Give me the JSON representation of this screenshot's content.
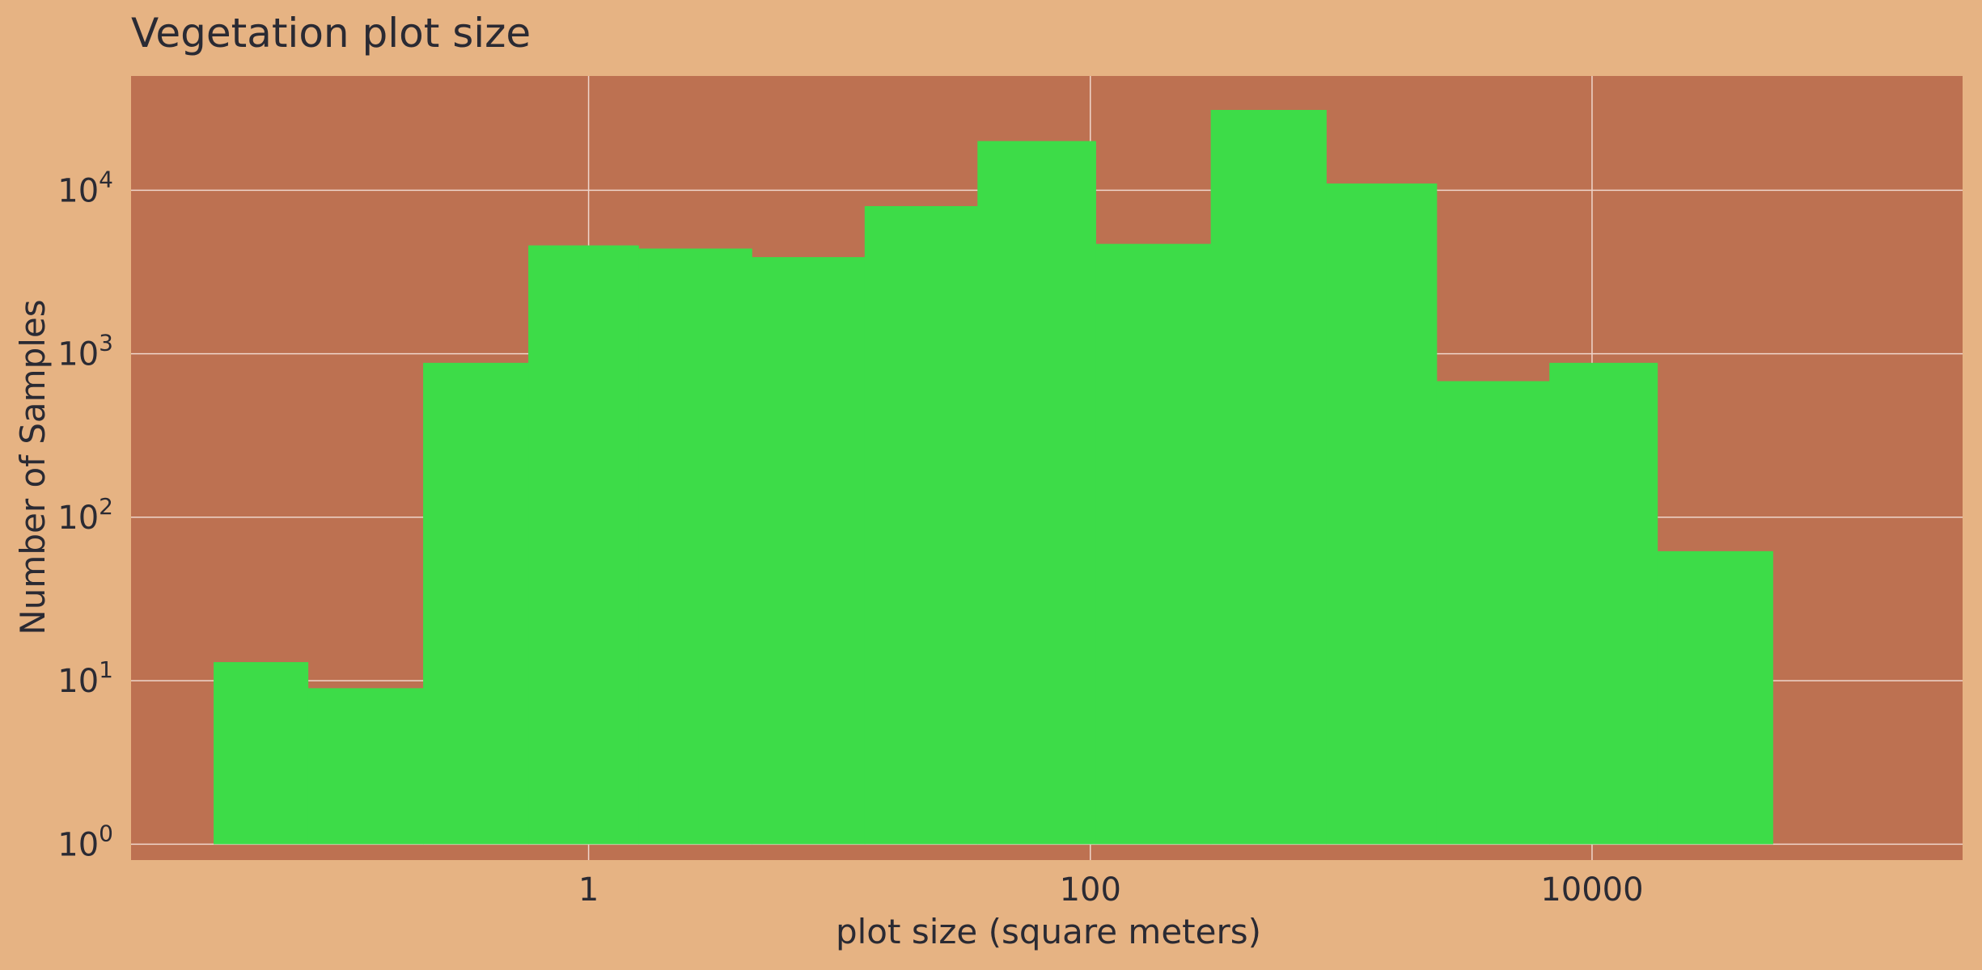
{
  "chart_data": {
    "type": "bar",
    "title": "Vegetation plot size",
    "xlabel": "plot size (square meters)",
    "ylabel": "Number of Samples",
    "x_scale": "log",
    "y_scale": "log",
    "xlim": [
      0.015,
      300000
    ],
    "ylim": [
      0.8,
      50000
    ],
    "x_ticks": [
      {
        "value": 1,
        "label": "1"
      },
      {
        "value": 100,
        "label": "100"
      },
      {
        "value": 10000,
        "label": "10000"
      }
    ],
    "y_ticks": [
      {
        "value": 1,
        "base": "10",
        "exp": "0"
      },
      {
        "value": 10,
        "base": "10",
        "exp": "1"
      },
      {
        "value": 100,
        "base": "10",
        "exp": "2"
      },
      {
        "value": 1000,
        "base": "10",
        "exp": "3"
      },
      {
        "value": 10000,
        "base": "10",
        "exp": "4"
      }
    ],
    "grid": true,
    "bins": [
      {
        "x0": 0.032,
        "x1": 0.076,
        "count": 13
      },
      {
        "x0": 0.076,
        "x1": 0.219,
        "count": 9
      },
      {
        "x0": 0.219,
        "x1": 0.575,
        "count": 880
      },
      {
        "x0": 0.575,
        "x1": 1.58,
        "count": 4600
      },
      {
        "x0": 1.58,
        "x1": 4.47,
        "count": 4400
      },
      {
        "x0": 4.47,
        "x1": 12.6,
        "count": 3900
      },
      {
        "x0": 12.6,
        "x1": 35.5,
        "count": 8000
      },
      {
        "x0": 35.5,
        "x1": 105,
        "count": 20000
      },
      {
        "x0": 105,
        "x1": 302,
        "count": 4700
      },
      {
        "x0": 302,
        "x1": 871,
        "count": 31000
      },
      {
        "x0": 871,
        "x1": 2400,
        "count": 11000
      },
      {
        "x0": 2400,
        "x1": 6760,
        "count": 680
      },
      {
        "x0": 6760,
        "x1": 18200,
        "count": 880
      },
      {
        "x0": 18200,
        "x1": 52500,
        "count": 62
      }
    ],
    "colors": {
      "background": "#e6b383",
      "plot_background": "#bd7151",
      "bar": "#3ddc48",
      "grid": "#efd6cc",
      "text": "#2a2a33"
    }
  }
}
